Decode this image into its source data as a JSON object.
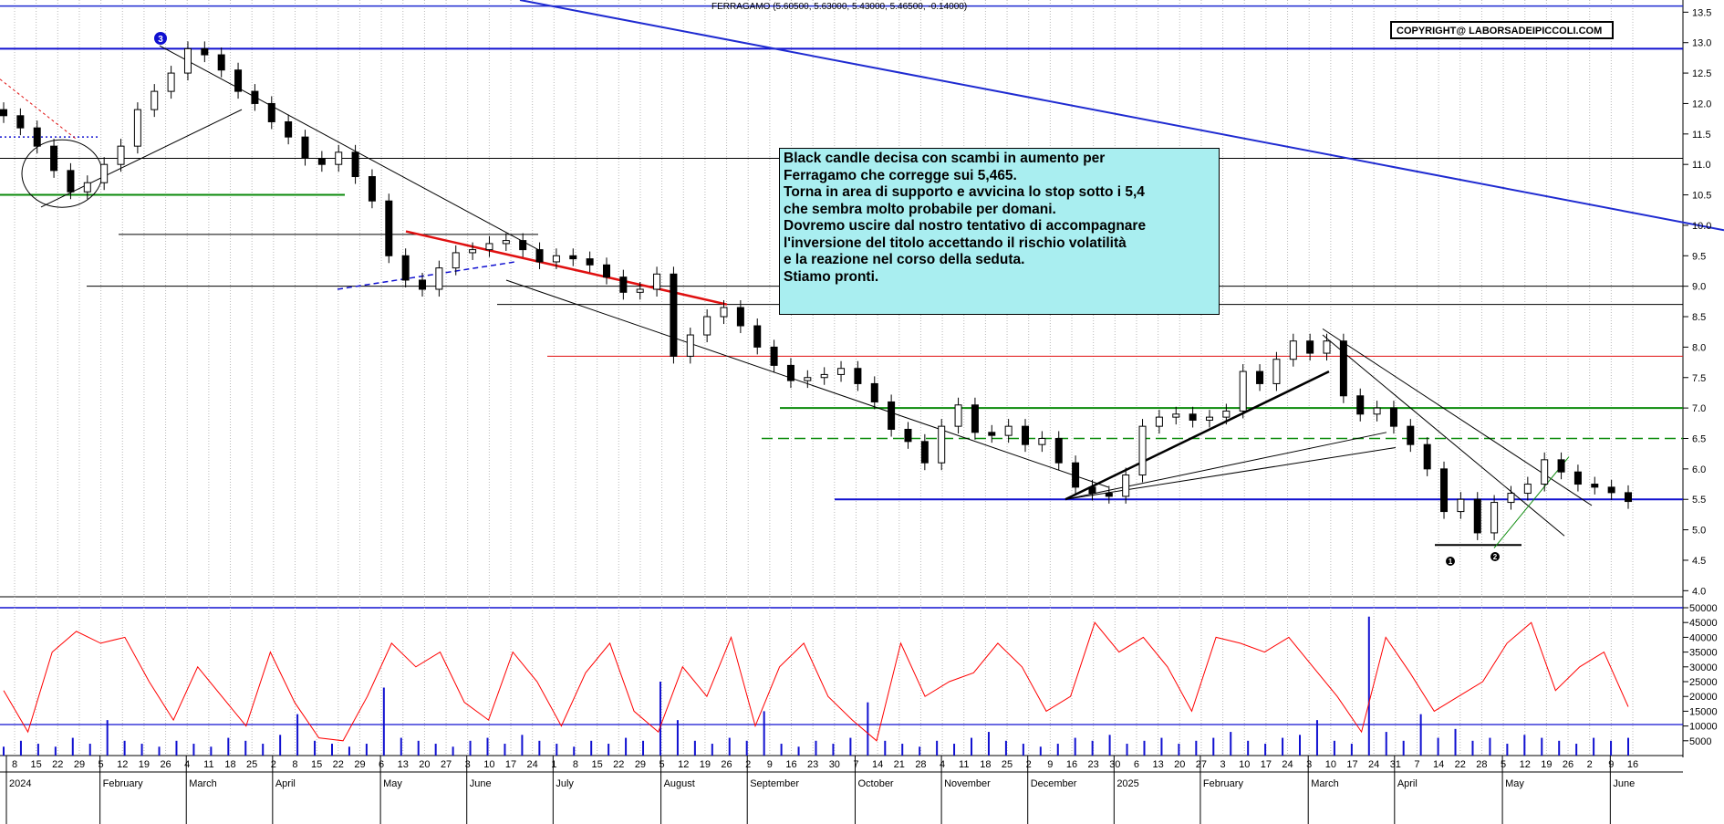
{
  "header": {
    "title": "FERRAGAMO (5.60500, 5.63000, 5.43000, 5.46500, -0.14000)",
    "copyright": "COPYRIGHT@ LABORSADEIPICCOLI.COM"
  },
  "annotation": {
    "lines": [
      "Black candle decisa con scambi in aumento per",
      "Ferragamo che corregge sui 5,465.",
      "Torna in area di supporto e avvicina lo stop sotto i 5,4",
      "che sembra molto probabile per domani.",
      "Dovremo uscire dal nostro tentativo di accompagnare",
      "l'inversione del titolo accettando il rischio volatilità",
      "e la reazione nel corso della seduta.",
      "Stiamo pronti."
    ]
  },
  "markers": {
    "m1": "1",
    "m2": "2",
    "m3": "3"
  },
  "colors": {
    "up": "#ffffff",
    "down": "#000000",
    "trend": "#1f2bd1",
    "support": "#1010d0",
    "resistance_red": "#e01010",
    "green": "#0a8a0a",
    "oscillator": "#ff0000",
    "volume": "#1010d0"
  },
  "chart_data": [
    {
      "type": "candlestick",
      "title": "FERRAGAMO (5.60500, 5.63000, 5.43000, 5.46500, -0.14000)",
      "last": {
        "open": 5.605,
        "high": 5.63,
        "low": 5.43,
        "close": 5.465,
        "change": -0.14
      },
      "ylim": [
        3.9,
        13.7
      ],
      "y_ticks": [
        "4.0",
        "4.5",
        "5.0",
        "5.5",
        "6.0",
        "6.5",
        "7.0",
        "7.5",
        "8.0",
        "8.5",
        "9.0",
        "9.5",
        "10.0",
        "10.5",
        "11.0",
        "11.5",
        "12.0",
        "12.5",
        "13.0",
        "13.5"
      ],
      "x_day_labels": [
        "8",
        "15",
        "22",
        "29",
        "5",
        "12",
        "19",
        "26",
        "4",
        "11",
        "18",
        "25",
        "2",
        "8",
        "15",
        "22",
        "29",
        "6",
        "13",
        "20",
        "27",
        "3",
        "10",
        "17",
        "24",
        "1",
        "8",
        "15",
        "22",
        "29",
        "5",
        "12",
        "19",
        "26",
        "2",
        "9",
        "16",
        "23",
        "30",
        "7",
        "14",
        "21",
        "28",
        "4",
        "11",
        "18",
        "25",
        "2",
        "9",
        "16",
        "23",
        "30",
        "6",
        "13",
        "20",
        "27",
        "3",
        "10",
        "17",
        "24",
        "3",
        "10",
        "17",
        "24",
        "31",
        "7",
        "14",
        "22",
        "28",
        "5",
        "12",
        "19",
        "26",
        "2",
        "9",
        "16"
      ],
      "x_month_labels": [
        "2024",
        "February",
        "March",
        "April",
        "May",
        "June",
        "July",
        "August",
        "September",
        "October",
        "November",
        "December",
        "2025",
        "February",
        "March",
        "April",
        "May",
        "June"
      ],
      "closes": [
        11.8,
        11.6,
        11.3,
        10.9,
        10.55,
        10.7,
        11.0,
        11.3,
        11.9,
        12.2,
        12.5,
        12.9,
        12.8,
        12.55,
        12.2,
        12.0,
        11.7,
        11.45,
        11.1,
        11.0,
        11.2,
        10.8,
        10.4,
        9.5,
        9.1,
        8.95,
        9.3,
        9.55,
        9.6,
        9.7,
        9.75,
        9.6,
        9.4,
        9.5,
        9.45,
        9.35,
        9.15,
        8.9,
        8.95,
        9.2,
        7.85,
        8.2,
        8.5,
        8.65,
        8.35,
        8.0,
        7.7,
        7.45,
        7.5,
        7.55,
        7.65,
        7.4,
        7.1,
        6.65,
        6.45,
        6.1,
        6.7,
        7.05,
        6.6,
        6.55,
        6.7,
        6.4,
        6.5,
        6.1,
        5.7,
        5.6,
        5.55,
        5.9,
        6.7,
        6.85,
        6.9,
        6.8,
        6.85,
        6.95,
        7.6,
        7.4,
        7.8,
        8.1,
        7.9,
        8.1,
        7.2,
        6.9,
        7.0,
        6.7,
        6.4,
        6.0,
        5.3,
        5.5,
        4.95,
        5.45,
        5.6,
        5.75,
        6.15,
        5.95,
        5.75,
        5.7,
        5.61,
        5.465
      ]
    },
    {
      "type": "line+bar",
      "ylim": [
        0,
        50000
      ],
      "y_ticks": [
        "5000",
        "10000",
        "15000",
        "20000",
        "25000",
        "30000",
        "35000",
        "40000",
        "45000",
        "50000"
      ],
      "reference_line": 10500,
      "oscillator": [
        22000,
        8000,
        35000,
        42000,
        38000,
        40000,
        25000,
        12000,
        30000,
        20000,
        10000,
        35000,
        18000,
        6000,
        5000,
        20000,
        38000,
        30000,
        35000,
        18000,
        12000,
        35000,
        25000,
        10000,
        28000,
        38000,
        15000,
        8000,
        30000,
        20000,
        40000,
        10000,
        30000,
        38000,
        20000,
        12000,
        5000,
        38000,
        20000,
        25000,
        28000,
        38000,
        30000,
        15000,
        20000,
        45000,
        35000,
        40000,
        30000,
        15000,
        40000,
        38000,
        35000,
        40000,
        30000,
        20000,
        8000,
        40000,
        28000,
        15000,
        20000,
        25000,
        38000,
        45000,
        22000,
        30000,
        35000,
        16500
      ],
      "volume": [
        3000,
        5000,
        4000,
        3000,
        6000,
        4000,
        12000,
        5000,
        4000,
        3000,
        5000,
        4000,
        3000,
        6000,
        5000,
        4000,
        7000,
        14000,
        5000,
        4000,
        3000,
        4000,
        23000,
        6000,
        5000,
        4000,
        3000,
        5000,
        6000,
        4000,
        7000,
        5000,
        4000,
        3000,
        5000,
        4000,
        6000,
        5000,
        25000,
        12000,
        5000,
        4000,
        6000,
        5000,
        15000,
        4000,
        3000,
        5000,
        4000,
        6000,
        18000,
        5000,
        4000,
        3000,
        5000,
        4000,
        6000,
        8000,
        5000,
        4000,
        3000,
        4000,
        6000,
        5000,
        7000,
        4000,
        5000,
        6000,
        4000,
        5000,
        6000,
        8000,
        5000,
        4000,
        6000,
        7000,
        12000,
        5000,
        4000,
        47000,
        8000,
        5000,
        14000,
        6000,
        9000,
        5000,
        6000,
        4000,
        7000,
        6000,
        5000,
        4000,
        6000,
        5000,
        6000
      ]
    }
  ]
}
